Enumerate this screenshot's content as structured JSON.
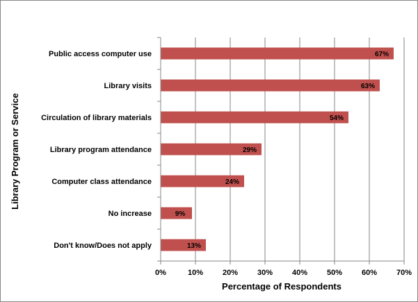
{
  "chart_data": {
    "type": "bar",
    "orientation": "horizontal",
    "categories": [
      "Public access computer use",
      "Library visits",
      "Circulation of library materials",
      "Library program attendance",
      "Computer class attendance",
      "No increase",
      "Don't know/Does not apply"
    ],
    "values": [
      67,
      63,
      54,
      29,
      24,
      9,
      13
    ],
    "data_labels": [
      "67%",
      "63%",
      "54%",
      "29%",
      "24%",
      "9%",
      "13%"
    ],
    "xlabel": "Percentage of Respondents",
    "ylabel": "Library Program or Service",
    "xlim": [
      0,
      70
    ],
    "xticks": [
      "0%",
      "10%",
      "20%",
      "30%",
      "40%",
      "50%",
      "60%",
      "70%"
    ],
    "xtick_values": [
      0,
      10,
      20,
      30,
      40,
      50,
      60,
      70
    ],
    "grid": true,
    "legend": false,
    "colors": {
      "bar": "#c0504d",
      "grid": "#868686",
      "axis": "#868686",
      "frame": "#868686"
    }
  }
}
